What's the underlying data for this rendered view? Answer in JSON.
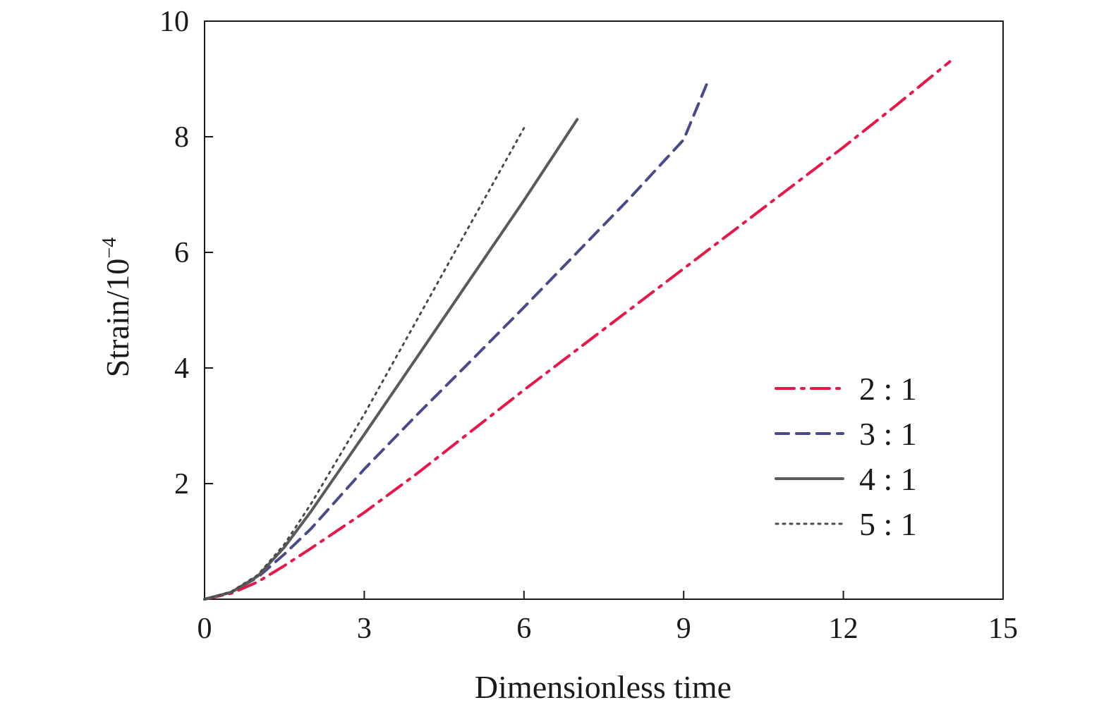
{
  "chart_data": {
    "type": "line",
    "xlabel": "Dimensionless time",
    "ylabel": "Strain/10",
    "ylabel_exponent": "−4",
    "xlim": [
      0,
      15
    ],
    "ylim": [
      0,
      10
    ],
    "x_ticks": [
      "0",
      "3",
      "6",
      "9",
      "12",
      "15"
    ],
    "y_ticks": [
      "2",
      "4",
      "6",
      "8",
      "10"
    ],
    "x_tick_values": [
      0,
      3,
      6,
      9,
      12,
      15
    ],
    "y_tick_values": [
      2,
      4,
      6,
      8,
      10
    ],
    "grid": false,
    "legend_position": "lower-right",
    "series": [
      {
        "name": "2 : 1",
        "style": "dashdot",
        "color": "#e8174a",
        "x": [
          0,
          0.5,
          1.0,
          1.5,
          2.0,
          3.0,
          4.0,
          5.0,
          6.0,
          7.0,
          8.0,
          9.0,
          10.0,
          11.0,
          12.0,
          13.0,
          14.0
        ],
        "y": [
          0,
          0.1,
          0.3,
          0.58,
          0.88,
          1.5,
          2.18,
          2.9,
          3.62,
          4.32,
          5.02,
          5.72,
          6.42,
          7.12,
          7.82,
          8.55,
          9.3
        ]
      },
      {
        "name": "3 : 1",
        "style": "dashed",
        "color": "#4a4a8a",
        "x": [
          0,
          0.5,
          1.0,
          1.5,
          2.0,
          3.0,
          4.0,
          5.0,
          6.0,
          7.0,
          8.0,
          9.0,
          9.45
        ],
        "y": [
          0,
          0.12,
          0.38,
          0.78,
          1.22,
          2.25,
          3.2,
          4.12,
          5.05,
          6.0,
          6.95,
          7.95,
          8.95
        ]
      },
      {
        "name": "4 : 1",
        "style": "solid",
        "color": "#5a5a5a",
        "x": [
          0,
          0.5,
          1.0,
          1.5,
          2.0,
          3.0,
          4.0,
          5.0,
          6.0,
          7.0
        ],
        "y": [
          0,
          0.12,
          0.4,
          0.9,
          1.52,
          2.85,
          4.2,
          5.55,
          6.9,
          8.3
        ]
      },
      {
        "name": "5 : 1",
        "style": "dotted",
        "color": "#4a4a4a",
        "x": [
          0,
          0.5,
          1.0,
          1.5,
          2.0,
          3.0,
          4.0,
          5.0,
          6.0
        ],
        "y": [
          0,
          0.13,
          0.42,
          0.95,
          1.65,
          3.2,
          4.85,
          6.5,
          8.15
        ]
      }
    ]
  }
}
